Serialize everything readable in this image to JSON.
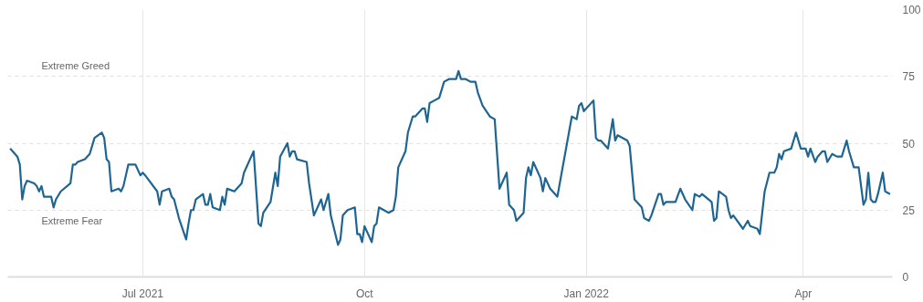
{
  "chart_data": {
    "type": "line",
    "line_style": "solid",
    "marker": "none",
    "grid": true,
    "xlim": [
      "2021-05-06",
      "2022-05-08"
    ],
    "xticks": [
      {
        "value": "2021-07-01",
        "label": "Jul 2021"
      },
      {
        "value": "2021-10-01",
        "label": "Oct"
      },
      {
        "value": "2022-01-01",
        "label": "Jan 2022"
      },
      {
        "value": "2022-04-01",
        "label": "Apr"
      }
    ],
    "ylim": [
      0,
      100
    ],
    "yticks": [
      0,
      25,
      50,
      75,
      100
    ],
    "annotations": [
      "Extreme Greed",
      "Extreme Fear"
    ],
    "x": [
      "2021-05-07",
      "2021-05-10",
      "2021-05-11",
      "2021-05-12",
      "2021-05-13",
      "2021-05-14",
      "2021-05-17",
      "2021-05-18",
      "2021-05-19",
      "2021-05-20",
      "2021-05-21",
      "2021-05-24",
      "2021-05-25",
      "2021-05-26",
      "2021-05-28",
      "2021-06-01",
      "2021-06-02",
      "2021-06-03",
      "2021-06-04",
      "2021-06-07",
      "2021-06-09",
      "2021-06-11",
      "2021-06-14",
      "2021-06-15",
      "2021-06-16",
      "2021-06-17",
      "2021-06-18",
      "2021-06-21",
      "2021-06-22",
      "2021-06-23",
      "2021-06-25",
      "2021-06-28",
      "2021-06-30",
      "2021-07-01",
      "2021-07-02",
      "2021-07-07",
      "2021-07-08",
      "2021-07-09",
      "2021-07-12",
      "2021-07-13",
      "2021-07-14",
      "2021-07-16",
      "2021-07-19",
      "2021-07-20",
      "2021-07-21",
      "2021-07-22",
      "2021-07-23",
      "2021-07-26",
      "2021-07-27",
      "2021-07-28",
      "2021-07-29",
      "2021-07-30",
      "2021-08-02",
      "2021-08-03",
      "2021-08-04",
      "2021-08-05",
      "2021-08-08",
      "2021-08-11",
      "2021-08-12",
      "2021-08-16",
      "2021-08-18",
      "2021-08-19",
      "2021-08-20",
      "2021-08-23",
      "2021-08-25",
      "2021-08-26",
      "2021-08-27",
      "2021-08-30",
      "2021-08-31",
      "2021-09-01",
      "2021-09-02",
      "2021-09-03",
      "2021-09-07",
      "2021-09-08",
      "2021-09-10",
      "2021-09-13",
      "2021-09-14",
      "2021-09-16",
      "2021-09-17",
      "2021-09-20",
      "2021-09-21",
      "2021-09-22",
      "2021-09-24",
      "2021-09-27",
      "2021-09-28",
      "2021-09-29",
      "2021-09-30",
      "2021-10-01",
      "2021-10-04",
      "2021-10-05",
      "2021-10-06",
      "2021-10-07",
      "2021-10-11",
      "2021-10-13",
      "2021-10-14",
      "2021-10-15",
      "2021-10-18",
      "2021-10-19",
      "2021-10-21",
      "2021-10-22",
      "2021-10-25",
      "2021-10-26",
      "2021-10-27",
      "2021-10-28",
      "2021-10-30",
      "2021-11-01",
      "2021-11-03",
      "2021-11-05",
      "2021-11-08",
      "2021-11-09",
      "2021-11-10",
      "2021-11-12",
      "2021-11-14",
      "2021-11-16",
      "2021-11-17",
      "2021-11-19",
      "2021-11-22",
      "2021-11-24",
      "2021-11-26",
      "2021-11-29",
      "2021-11-30",
      "2021-12-02",
      "2021-12-03",
      "2021-12-06",
      "2021-12-07",
      "2021-12-08",
      "2021-12-09",
      "2021-12-10",
      "2021-12-13",
      "2021-12-14",
      "2021-12-15",
      "2021-12-17",
      "2021-12-20",
      "2021-12-22",
      "2021-12-26",
      "2021-12-28",
      "2021-12-29",
      "2021-12-30",
      "2021-12-31",
      "2022-01-04",
      "2022-01-05",
      "2022-01-06",
      "2022-01-07",
      "2022-01-10",
      "2022-01-12",
      "2022-01-13",
      "2022-01-14",
      "2022-01-18",
      "2022-01-19",
      "2022-01-21",
      "2022-01-24",
      "2022-01-25",
      "2022-01-27",
      "2022-01-28",
      "2022-01-31",
      "2022-02-01",
      "2022-02-02",
      "2022-02-03",
      "2022-02-07",
      "2022-02-09",
      "2022-02-11",
      "2022-02-14",
      "2022-02-15",
      "2022-02-17",
      "2022-02-18",
      "2022-02-22",
      "2022-02-23",
      "2022-02-24",
      "2022-02-25",
      "2022-02-28",
      "2022-03-01",
      "2022-03-02",
      "2022-03-03",
      "2022-03-07",
      "2022-03-09",
      "2022-03-10",
      "2022-03-13",
      "2022-03-14",
      "2022-03-16",
      "2022-03-18",
      "2022-03-20",
      "2022-03-21",
      "2022-03-22",
      "2022-03-23",
      "2022-03-24",
      "2022-03-27",
      "2022-03-29",
      "2022-03-30",
      "2022-03-31",
      "2022-04-02",
      "2022-04-03",
      "2022-04-04",
      "2022-04-06",
      "2022-04-07",
      "2022-04-09",
      "2022-04-10",
      "2022-04-11",
      "2022-04-13",
      "2022-04-15",
      "2022-04-17",
      "2022-04-19",
      "2022-04-20",
      "2022-04-22",
      "2022-04-24",
      "2022-04-26",
      "2022-04-27",
      "2022-04-28",
      "2022-04-29",
      "2022-04-30",
      "2022-05-01",
      "2022-05-02",
      "2022-05-04",
      "2022-05-05",
      "2022-05-07"
    ],
    "series": [
      {
        "color": "#1f6592",
        "values": [
          48,
          45,
          42,
          29,
          34,
          36,
          35,
          34,
          32,
          34,
          30,
          30,
          26,
          29,
          32,
          35,
          42,
          42,
          43,
          44,
          46,
          52,
          54,
          52,
          44,
          43,
          32,
          33,
          32,
          34,
          42,
          42,
          38,
          39,
          38,
          32,
          27,
          32,
          33,
          30,
          29,
          22,
          14,
          20,
          25,
          25,
          29,
          31,
          27,
          27,
          31,
          26,
          25,
          30,
          27,
          33,
          32,
          35,
          39,
          47,
          20,
          19,
          24,
          28,
          39,
          34,
          45,
          50,
          45,
          47,
          47,
          44,
          43,
          35,
          23,
          29,
          25,
          31,
          23,
          12,
          14,
          23,
          25,
          26,
          16,
          16,
          13,
          19,
          13,
          19,
          20,
          26,
          24,
          25,
          30,
          41,
          47,
          54,
          60,
          60,
          63,
          63,
          58,
          65,
          66,
          67,
          73,
          74,
          74,
          77,
          74,
          74,
          73,
          73,
          69,
          64,
          60,
          59,
          33,
          39,
          27,
          25,
          21,
          24,
          37,
          41,
          38,
          43,
          37,
          32,
          37,
          33,
          30,
          40,
          60,
          59,
          64,
          65,
          62,
          66,
          52,
          51,
          51,
          48,
          59,
          51,
          53,
          51,
          49,
          29,
          26,
          22,
          21,
          23,
          31,
          31,
          27,
          28,
          28,
          33,
          29,
          25,
          31,
          30,
          31,
          28,
          21,
          22,
          32,
          30,
          25,
          22,
          23,
          18,
          21,
          19,
          18,
          16,
          32,
          39,
          39,
          41,
          46,
          44,
          47,
          48,
          54,
          51,
          48,
          48,
          45,
          48,
          43,
          45,
          47,
          47,
          43,
          46,
          45,
          45,
          51,
          47,
          41,
          41,
          27,
          29,
          39,
          29,
          28,
          28,
          31,
          39,
          32,
          31
        ]
      }
    ]
  }
}
